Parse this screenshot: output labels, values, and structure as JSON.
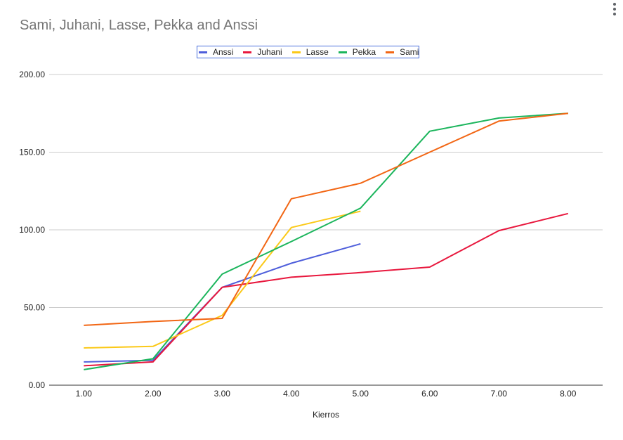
{
  "chart_data": {
    "type": "line",
    "title": "Sami, Juhani, Lasse, Pekka and Anssi",
    "xlabel": "Kierros",
    "ylabel": "",
    "xlim": [
      0.5,
      8.5
    ],
    "ylim": [
      0,
      200
    ],
    "x_ticks": [
      "1.00",
      "2.00",
      "3.00",
      "4.00",
      "5.00",
      "6.00",
      "7.00",
      "8.00"
    ],
    "y_ticks": [
      "0.00",
      "50.00",
      "100.00",
      "150.00",
      "200.00"
    ],
    "grid": true,
    "legend_position": "top",
    "series": [
      {
        "name": "Anssi",
        "color": "#4e5edb",
        "x": [
          1,
          2,
          3,
          4,
          5
        ],
        "values": [
          15,
          16,
          63,
          78.5,
          91
        ]
      },
      {
        "name": "Juhani",
        "color": "#e8173d",
        "x": [
          1,
          2,
          3,
          4,
          5,
          6,
          7,
          8
        ],
        "values": [
          12.5,
          15,
          63,
          69.5,
          72.5,
          76,
          99.5,
          110.5
        ]
      },
      {
        "name": "Lasse",
        "color": "#fbc918",
        "x": [
          1,
          2,
          3,
          4,
          5
        ],
        "values": [
          24,
          25,
          45,
          101.5,
          112
        ]
      },
      {
        "name": "Pekka",
        "color": "#1bb55c",
        "x": [
          1,
          2,
          3,
          4,
          5,
          6,
          7,
          8
        ],
        "values": [
          10,
          17,
          71.5,
          92.5,
          114,
          163.5,
          172,
          175
        ]
      },
      {
        "name": "Sami",
        "color": "#f26614",
        "x": [
          1,
          2,
          3,
          4,
          5,
          6,
          7,
          8
        ],
        "values": [
          38.5,
          41,
          43,
          120,
          130,
          150,
          170,
          175
        ]
      }
    ]
  }
}
